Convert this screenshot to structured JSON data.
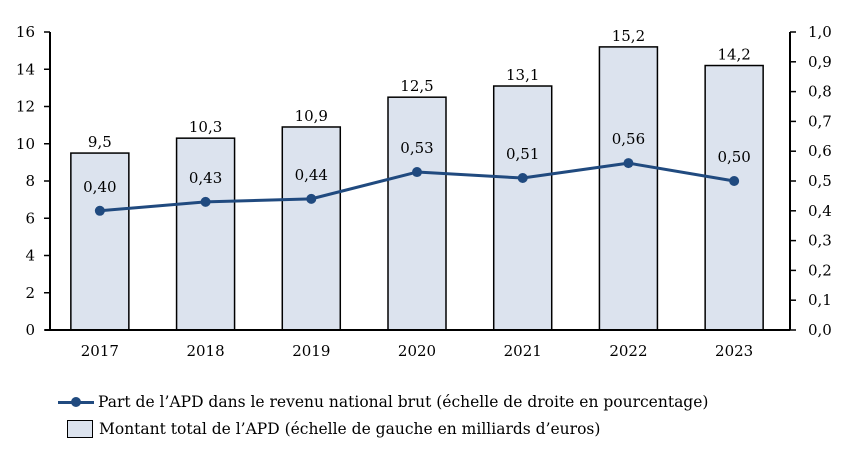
{
  "chart_data": {
    "type": "bar",
    "categories": [
      "2017",
      "2018",
      "2019",
      "2020",
      "2021",
      "2022",
      "2023"
    ],
    "series": [
      {
        "name": "Montant total de l’APD (échelle de gauche en milliards d’euros)",
        "type": "bar",
        "axis": "left",
        "values": [
          9.5,
          10.3,
          10.9,
          12.5,
          13.1,
          15.2,
          14.2
        ],
        "labels": [
          "9,5",
          "10,3",
          "10,9",
          "12,5",
          "13,1",
          "15,2",
          "14,2"
        ],
        "color": "#dce3ee"
      },
      {
        "name": "Part de l’APD dans le revenu national brut (échelle de droite en pourcentage)",
        "type": "line",
        "axis": "right",
        "values": [
          0.4,
          0.43,
          0.44,
          0.53,
          0.51,
          0.56,
          0.5
        ],
        "labels": [
          "0,40",
          "0,43",
          "0,44",
          "0,53",
          "0,51",
          "0,56",
          "0,50"
        ],
        "color": "#204a7f"
      }
    ],
    "y_left": {
      "range": [
        0,
        16
      ],
      "ticks": [
        "0",
        "2",
        "4",
        "6",
        "8",
        "10",
        "12",
        "14",
        "16"
      ]
    },
    "y_right": {
      "range": [
        0,
        1.0
      ],
      "ticks": [
        "0,0",
        "0,1",
        "0,2",
        "0,3",
        "0,4",
        "0,5",
        "0,6",
        "0,7",
        "0,8",
        "0,9",
        "1,0"
      ]
    },
    "title": "",
    "xlabel": "",
    "grid": false,
    "legend_position": "bottom"
  },
  "legend": {
    "line_label": "Part de l’APD dans le revenu national brut (échelle de droite en pourcentage)",
    "bar_label": "Montant total de l’APD (échelle de gauche en milliards d’euros)"
  }
}
